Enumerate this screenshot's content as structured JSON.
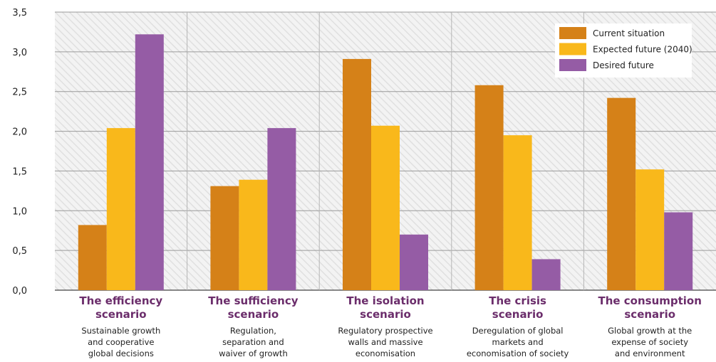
{
  "chart_data": {
    "type": "bar",
    "categories": [
      {
        "title": [
          "The efficiency",
          "scenario"
        ],
        "subtitle": [
          "Sustainable growth",
          "and cooperative",
          "global decisions"
        ]
      },
      {
        "title": [
          "The sufficiency",
          "scenario"
        ],
        "subtitle": [
          "Regulation,",
          "separation and",
          "waiver of growth"
        ]
      },
      {
        "title": [
          "The isolation",
          "scenario"
        ],
        "subtitle": [
          "Regulatory prospective",
          "walls and massive",
          "economisation"
        ]
      },
      {
        "title": [
          "The crisis",
          "scenario"
        ],
        "subtitle": [
          "Deregulation of global",
          "markets and",
          "economisation of society"
        ]
      },
      {
        "title": [
          "The consumption",
          "scenario"
        ],
        "subtitle": [
          "Global growth at the",
          "expense of society",
          "and environment"
        ]
      }
    ],
    "series": [
      {
        "name": "Current situation",
        "color": "#d58118",
        "values": [
          0.82,
          1.31,
          2.91,
          2.58,
          2.42
        ]
      },
      {
        "name": "Expected future (2040)",
        "color": "#f9b81b",
        "values": [
          2.04,
          1.39,
          2.07,
          1.95,
          1.52
        ]
      },
      {
        "name": "Desired future",
        "color": "#955ca5",
        "values": [
          3.22,
          2.04,
          0.7,
          0.39,
          0.98
        ]
      }
    ],
    "ylim": [
      0,
      3.5
    ],
    "yticks": [
      "0,0",
      "0,5",
      "1,0",
      "1,5",
      "2,0",
      "2,5",
      "3,0",
      "3,5"
    ],
    "grid": true,
    "legend_position": "top-right",
    "title": "",
    "xlabel": "",
    "ylabel": ""
  }
}
